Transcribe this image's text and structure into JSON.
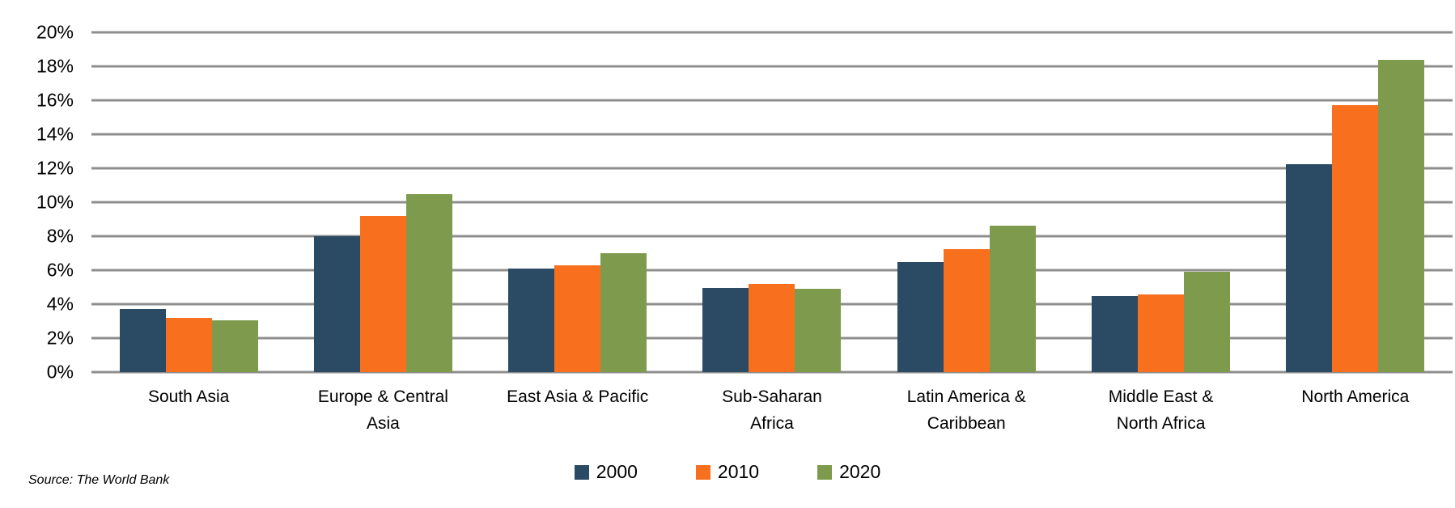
{
  "chart_data": {
    "type": "bar",
    "title": "",
    "xlabel": "",
    "ylabel": "",
    "source": "Source: The World Bank",
    "legend_position": "bottom-center",
    "grid": true,
    "gridline_color": "#8E8E8E",
    "yaxis": {
      "min": 0,
      "max": 20,
      "step": 2,
      "suffix": "%",
      "tick_labels": [
        "0%",
        "2%",
        "4%",
        "6%",
        "8%",
        "10%",
        "12%",
        "14%",
        "16%",
        "18%",
        "20%"
      ]
    },
    "categories": [
      "South Asia",
      "Europe & Central\nAsia",
      "East Asia & Pacific",
      "Sub-Saharan\nAfrica",
      "Latin America &\nCaribbean",
      "Middle East &\nNorth Africa",
      "North America"
    ],
    "series": [
      {
        "name": "2000",
        "color": "#2B4A63",
        "values": [
          3.7,
          8.0,
          6.1,
          4.95,
          6.5,
          4.5,
          12.25
        ]
      },
      {
        "name": "2010",
        "color": "#F8701E",
        "values": [
          3.2,
          9.2,
          6.3,
          5.2,
          7.25,
          4.55,
          15.7
        ]
      },
      {
        "name": "2020",
        "color": "#7E9B4D",
        "values": [
          3.05,
          10.5,
          7.0,
          4.9,
          8.6,
          5.9,
          18.4
        ]
      }
    ]
  }
}
